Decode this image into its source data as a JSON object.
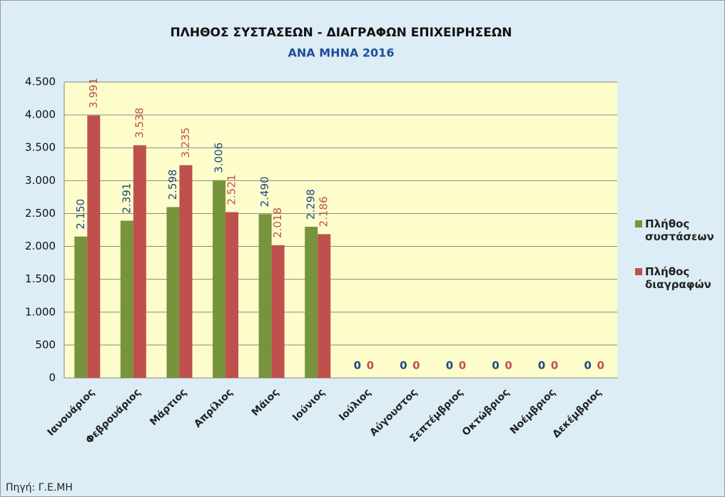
{
  "chart_data": {
    "type": "bar",
    "title": "ΠΛΗΘΟΣ ΣΥΣΤΑΣΕΩΝ - ΔΙΑΓΡΑΦΩΝ ΕΠΙΧΕΙΡΗΣΕΩΝ",
    "subtitle": "ΑΝΑ ΜΗΝΑ 2016",
    "source": "Πηγή: Γ.Ε.ΜΗ",
    "categories": [
      "Ιανουάριος",
      "Φεβρουάριος",
      "Μάρτιος",
      "Απρίλιος",
      "Μάιος",
      "Ιούνιος",
      "Ιούλιος",
      "Αύγουστος",
      "Σεπτέμβριος",
      "Οκτώβριος",
      "Νοέμβριος",
      "Δεκέμβριος"
    ],
    "series": [
      {
        "name": "Πλήθος συστάσεων",
        "color": "#77933c",
        "label_color": "#1f497d",
        "values": [
          2150,
          2391,
          2598,
          3006,
          2490,
          2298,
          0,
          0,
          0,
          0,
          0,
          0
        ],
        "value_labels": [
          "2.150",
          "2.391",
          "2.598",
          "3.006",
          "2.490",
          "2.298",
          "0",
          "0",
          "0",
          "0",
          "0",
          "0"
        ]
      },
      {
        "name": "Πλήθος διαγραφών",
        "color": "#c0504d",
        "label_color": "#c0504d",
        "values": [
          3991,
          3538,
          3235,
          2521,
          2018,
          2186,
          0,
          0,
          0,
          0,
          0,
          0
        ],
        "value_labels": [
          "3.991",
          "3.538",
          "3.235",
          "2.521",
          "2.018",
          "2.186",
          "0",
          "0",
          "0",
          "0",
          "0",
          "0"
        ]
      }
    ],
    "ylim": [
      0,
      4500
    ],
    "yticks": [
      0,
      500,
      {
        "value": 1000,
        "label": "1.000"
      },
      {
        "value": 1500,
        "label": "1.500"
      },
      {
        "value": 2000,
        "label": "2.000"
      },
      {
        "value": 2500,
        "label": "2.500"
      },
      {
        "value": 3000,
        "label": "3.000"
      },
      {
        "value": 3500,
        "label": "3.500"
      },
      {
        "value": 4000,
        "label": "4.000"
      },
      {
        "value": 4500,
        "label": "4.500"
      }
    ],
    "grid": true,
    "legend": "right"
  }
}
